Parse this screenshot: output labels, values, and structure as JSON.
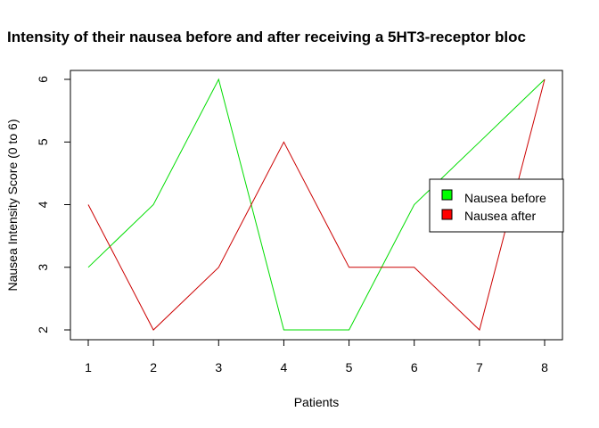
{
  "chart_data": {
    "type": "line",
    "title": "Intensity of their nausea before and after receiving a 5HT3-receptor bloc",
    "xlabel": "Patients",
    "ylabel": "Nausea Intensity Score (0 to 6)",
    "x": [
      1,
      2,
      3,
      4,
      5,
      6,
      7,
      8
    ],
    "xlim": [
      1,
      8
    ],
    "ylim": [
      2,
      6
    ],
    "xticks": [
      "1",
      "2",
      "3",
      "4",
      "5",
      "6",
      "7",
      "8"
    ],
    "yticks": [
      "2",
      "3",
      "4",
      "5",
      "6"
    ],
    "series": [
      {
        "name": "Nausea before",
        "color": "#00dd00",
        "values": [
          3,
          4,
          6,
          2,
          2,
          4,
          5,
          6
        ]
      },
      {
        "name": "Nausea after",
        "color": "#cc0000",
        "values": [
          4,
          2,
          3,
          5,
          3,
          3,
          2,
          6
        ]
      }
    ],
    "legend": {
      "position": "right",
      "swatch_colors": [
        "#00ff00",
        "#ff0000"
      ]
    },
    "grid": false
  }
}
